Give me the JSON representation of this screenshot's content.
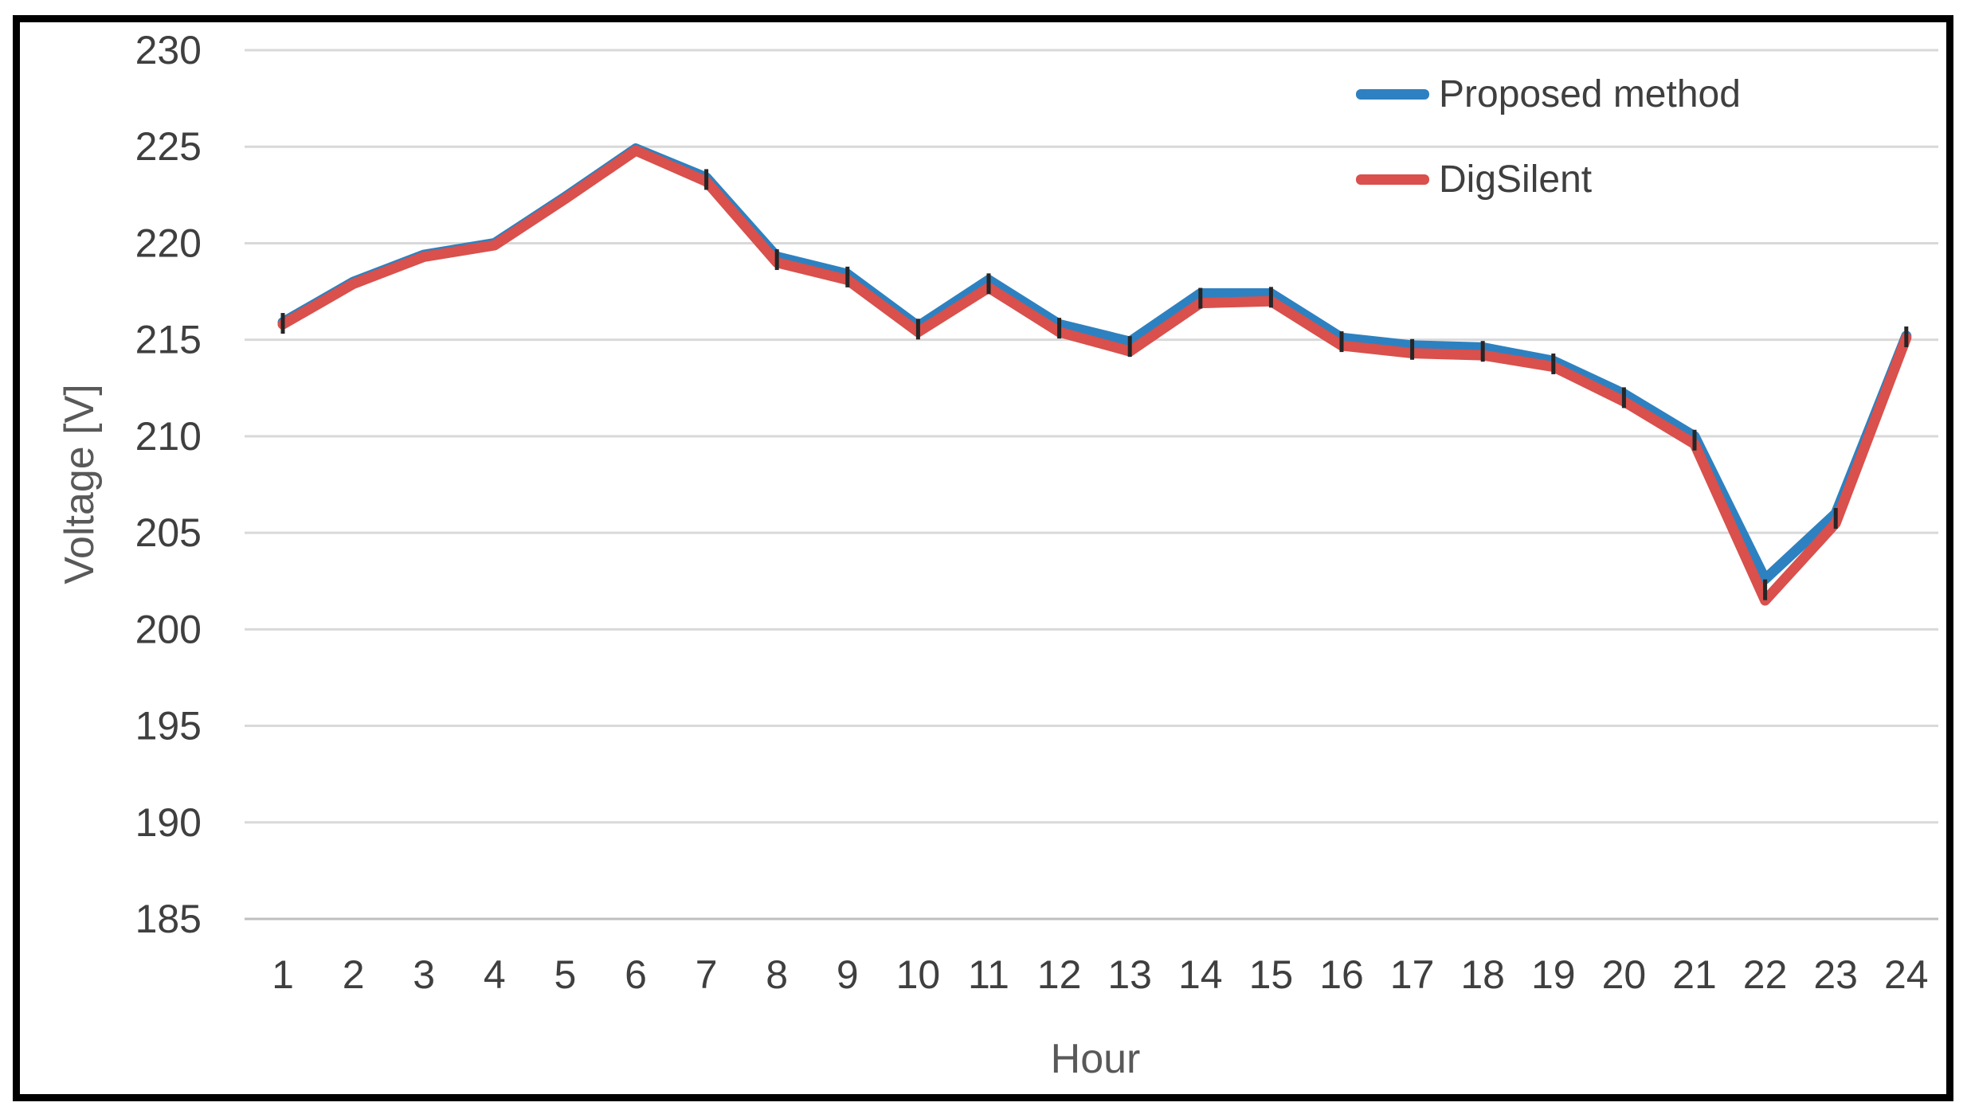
{
  "chart_data": {
    "type": "line",
    "title": "",
    "xlabel": "Hour",
    "ylabel": "Voltage [V]",
    "x": [
      1,
      2,
      3,
      4,
      5,
      6,
      7,
      8,
      9,
      10,
      11,
      12,
      13,
      14,
      15,
      16,
      17,
      18,
      19,
      20,
      21,
      22,
      23,
      24
    ],
    "series": [
      {
        "name": "Proposed method",
        "color": "#2E81C0",
        "values": [
          215.9,
          218.0,
          219.4,
          220.0,
          222.4,
          224.9,
          223.4,
          219.3,
          218.4,
          215.7,
          218.1,
          215.8,
          214.9,
          217.4,
          217.4,
          215.1,
          214.7,
          214.6,
          213.9,
          212.2,
          210.0,
          202.6,
          206.0,
          215.2
        ]
      },
      {
        "name": "DigSilent",
        "color": "#D9504C",
        "values": [
          215.8,
          217.9,
          219.3,
          219.9,
          222.3,
          224.8,
          223.2,
          219.0,
          218.1,
          215.4,
          217.7,
          215.4,
          214.4,
          216.9,
          217.0,
          214.7,
          214.3,
          214.2,
          213.6,
          211.8,
          209.6,
          201.5,
          205.5,
          215.1
        ]
      }
    ],
    "ylim": [
      185,
      230
    ],
    "yticks": [
      230,
      225,
      220,
      215,
      210,
      205,
      200,
      195,
      190,
      185
    ],
    "xticks": [
      1,
      2,
      3,
      4,
      5,
      6,
      7,
      8,
      9,
      10,
      11,
      12,
      13,
      14,
      15,
      16,
      17,
      18,
      19,
      20,
      21,
      22,
      23,
      24
    ],
    "grid": "horizontal-only",
    "legend_position": "top-right-inside",
    "marker_tick_hours": [
      1,
      7,
      8,
      9,
      10,
      11,
      12,
      13,
      14,
      15,
      16,
      17,
      18,
      19,
      20,
      21,
      22,
      23,
      24
    ]
  },
  "styles": {
    "gridline_color": "#D9D9D9",
    "axis_line_color": "#BFBFBF",
    "tick_label_color": "#3F3F3F",
    "axis_title_color": "#595959",
    "legend_text_color": "#3F3F3F",
    "marker_tick_color": "#262626",
    "frame_color": "#000000",
    "background_color": "#FFFFFF"
  }
}
